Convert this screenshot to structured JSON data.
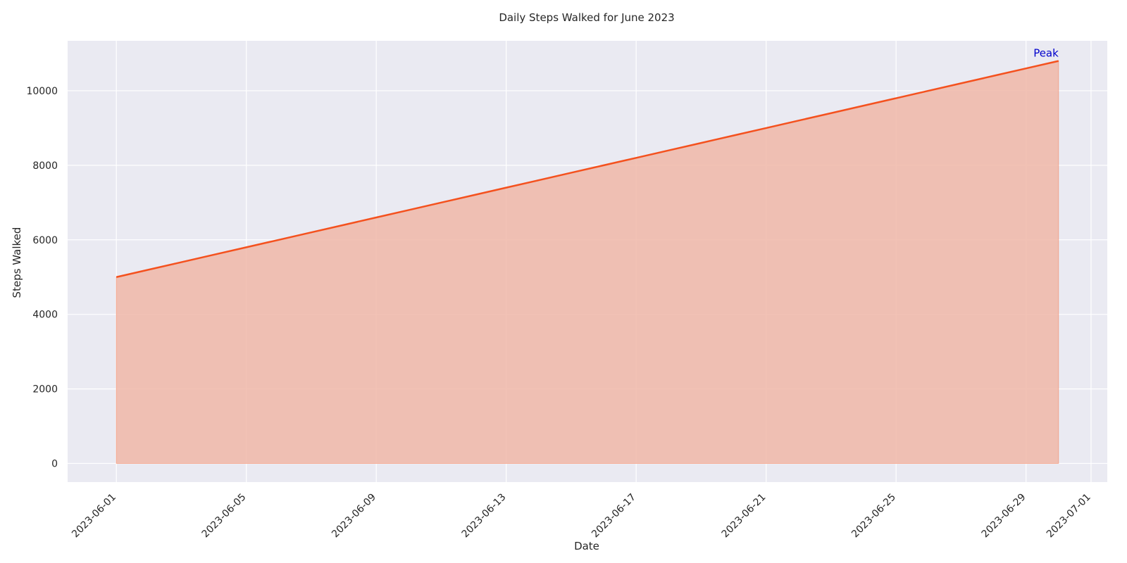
{
  "chart_data": {
    "type": "area",
    "title": "Daily Steps Walked for June 2023",
    "xlabel": "Date",
    "ylabel": "Steps Walked",
    "x_start": "2023-06-01",
    "x_end": "2023-06-30",
    "series": [
      {
        "values": [
          5000,
          5200,
          5400,
          5600,
          5800,
          6000,
          6200,
          6400,
          6600,
          6800,
          7000,
          7200,
          7400,
          7600,
          7800,
          8000,
          8200,
          8400,
          8600,
          8800,
          9000,
          9200,
          9400,
          9600,
          9800,
          10000,
          10200,
          10400,
          10600,
          10800
        ],
        "line_color": "#f4511e",
        "fill_color": "#f0b7a8"
      }
    ],
    "xlim": [
      "2023-05-30 12:00",
      "2023-07-01 12:00"
    ],
    "ylim": [
      -500,
      11340
    ],
    "x_ticks": [
      "2023-06-01",
      "2023-06-05",
      "2023-06-09",
      "2023-06-13",
      "2023-06-17",
      "2023-06-21",
      "2023-06-25",
      "2023-06-29",
      "2023-07-01"
    ],
    "y_ticks": [
      0,
      2000,
      4000,
      6000,
      8000,
      10000
    ],
    "grid": true,
    "background": "#eaeaf2",
    "annotation": {
      "text": "Peak",
      "x": "2023-06-30",
      "y": 10800,
      "color": "#0000cc"
    }
  }
}
